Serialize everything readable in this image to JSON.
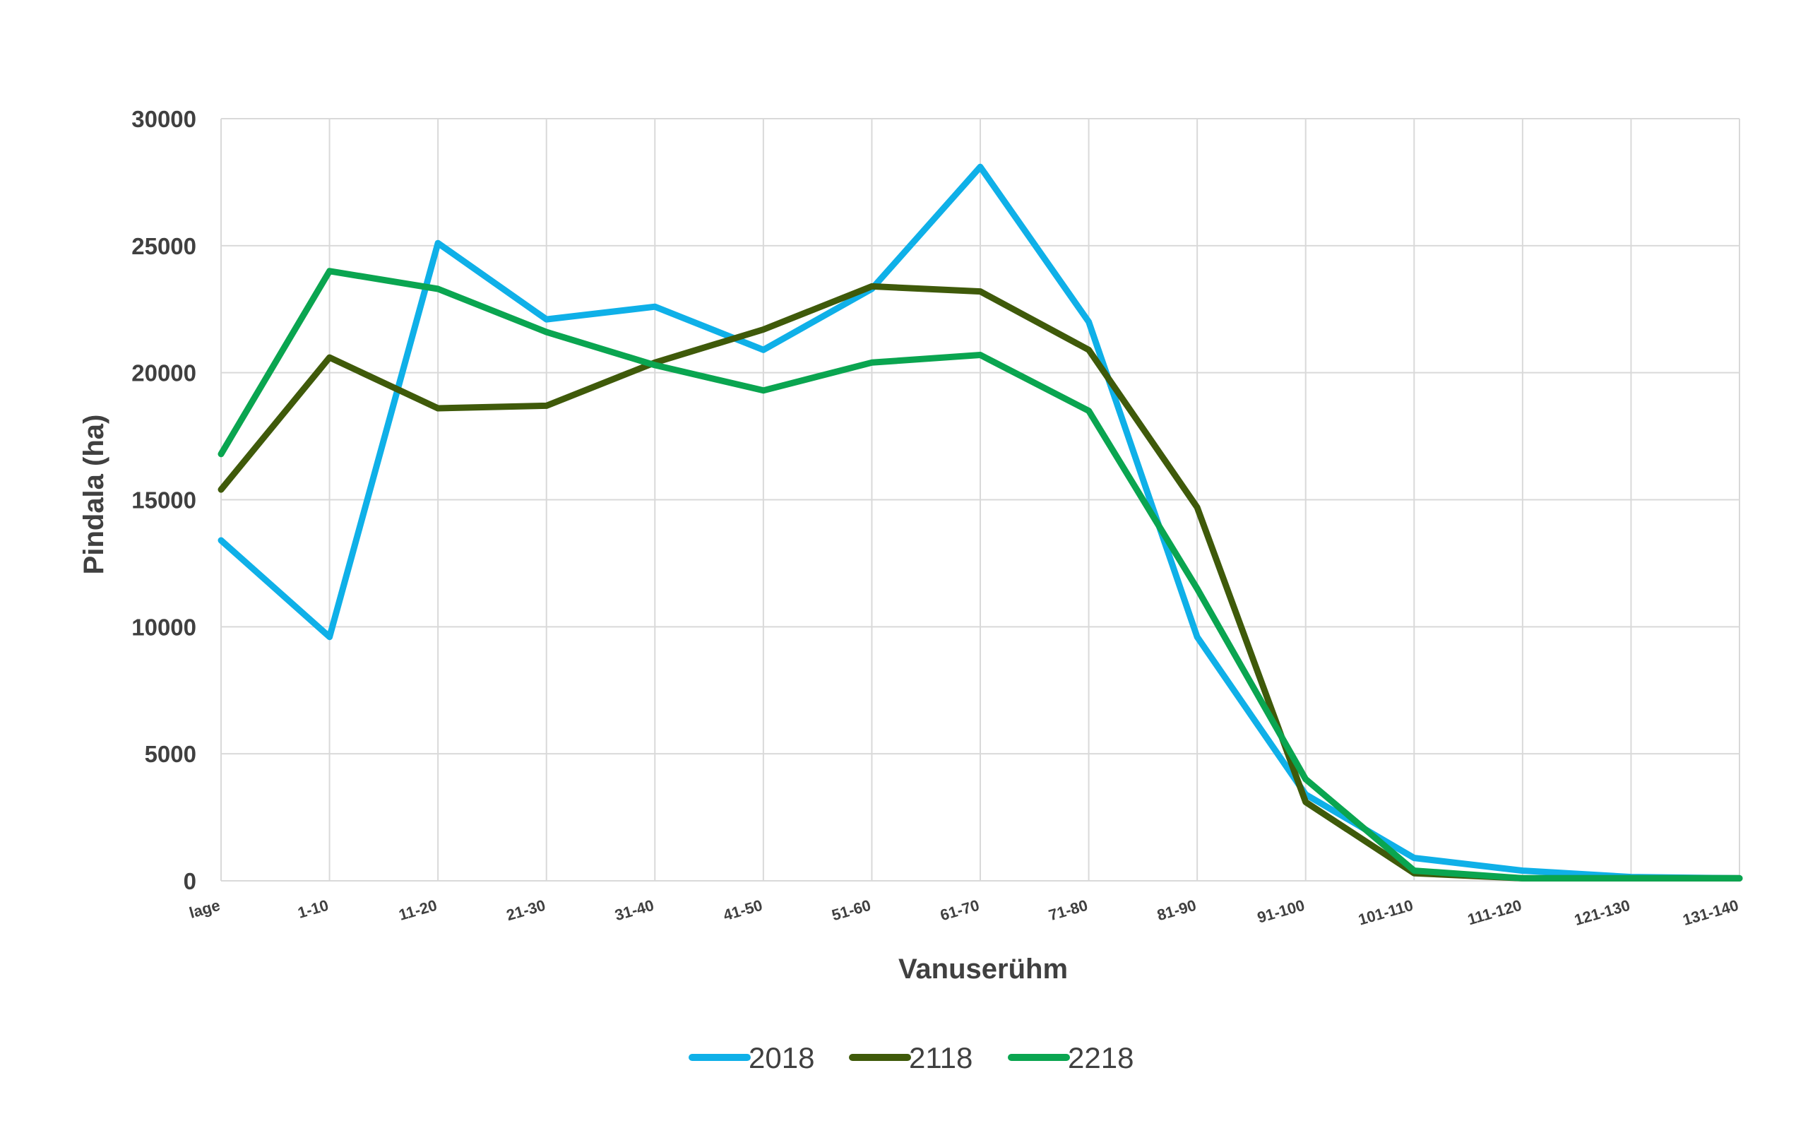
{
  "chart_data": {
    "type": "line",
    "title": "",
    "xlabel": "Vanuserühm",
    "ylabel": "Pindala (ha)",
    "ylim": [
      0,
      30000
    ],
    "yticks": [
      "0",
      "5000",
      "10000",
      "15000",
      "20000",
      "25000",
      "30000"
    ],
    "categories": [
      "lage",
      "1-10",
      "11-20",
      "21-30",
      "31-40",
      "41-50",
      "51-60",
      "61-70",
      "71-80",
      "81-90",
      "91-100",
      "101-110",
      "111-120",
      "121-130",
      "131-140"
    ],
    "grid": true,
    "legend_position": "bottom",
    "series": [
      {
        "name": "2018",
        "color": "#0fb0e8",
        "values": [
          13400,
          9600,
          25100,
          22100,
          22600,
          20900,
          23300,
          28100,
          22000,
          9600,
          3400,
          900,
          400,
          150,
          100
        ]
      },
      {
        "name": "2118",
        "color": "#3f5a0a",
        "values": [
          15400,
          20600,
          18600,
          18700,
          20400,
          21700,
          23400,
          23200,
          20900,
          14700,
          3100,
          300,
          100,
          100,
          100
        ]
      },
      {
        "name": "2218",
        "color": "#0aa550",
        "values": [
          16800,
          24000,
          23300,
          21600,
          20300,
          19300,
          20400,
          20700,
          18500,
          11500,
          4000,
          400,
          100,
          100,
          100
        ]
      }
    ]
  }
}
